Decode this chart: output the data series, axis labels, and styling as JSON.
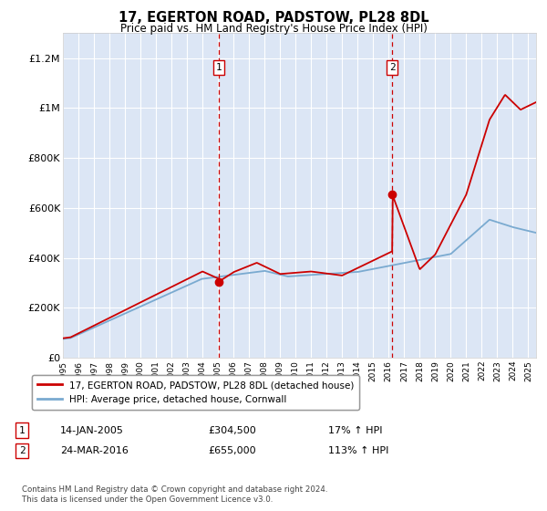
{
  "title": "17, EGERTON ROAD, PADSTOW, PL28 8DL",
  "subtitle": "Price paid vs. HM Land Registry's House Price Index (HPI)",
  "background_color": "#ffffff",
  "plot_bg_color": "#dce6f5",
  "grid_color": "#ffffff",
  "hpi_line_color": "#7aaad0",
  "price_line_color": "#cc0000",
  "sale1_x": 2005.04,
  "sale1_y": 304500,
  "sale1_label": "1",
  "sale1_date": "14-JAN-2005",
  "sale1_price": "£304,500",
  "sale1_hpi": "17% ↑ HPI",
  "sale2_x": 2016.23,
  "sale2_y": 655000,
  "sale2_label": "2",
  "sale2_date": "24-MAR-2016",
  "sale2_price": "£655,000",
  "sale2_hpi": "113% ↑ HPI",
  "xmin": 1995,
  "xmax": 2025.5,
  "ymin": 0,
  "ymax": 1300000,
  "yticks": [
    0,
    200000,
    400000,
    600000,
    800000,
    1000000,
    1200000
  ],
  "ytick_labels": [
    "£0",
    "£200K",
    "£400K",
    "£600K",
    "£800K",
    "£1M",
    "£1.2M"
  ],
  "xticks": [
    1995,
    1996,
    1997,
    1998,
    1999,
    2000,
    2001,
    2002,
    2003,
    2004,
    2005,
    2006,
    2007,
    2008,
    2009,
    2010,
    2011,
    2012,
    2013,
    2014,
    2015,
    2016,
    2017,
    2018,
    2019,
    2020,
    2021,
    2022,
    2023,
    2024,
    2025
  ],
  "legend_label_red": "17, EGERTON ROAD, PADSTOW, PL28 8DL (detached house)",
  "legend_label_blue": "HPI: Average price, detached house, Cornwall",
  "footnote": "Contains HM Land Registry data © Crown copyright and database right 2024.\nThis data is licensed under the Open Government Licence v3.0."
}
